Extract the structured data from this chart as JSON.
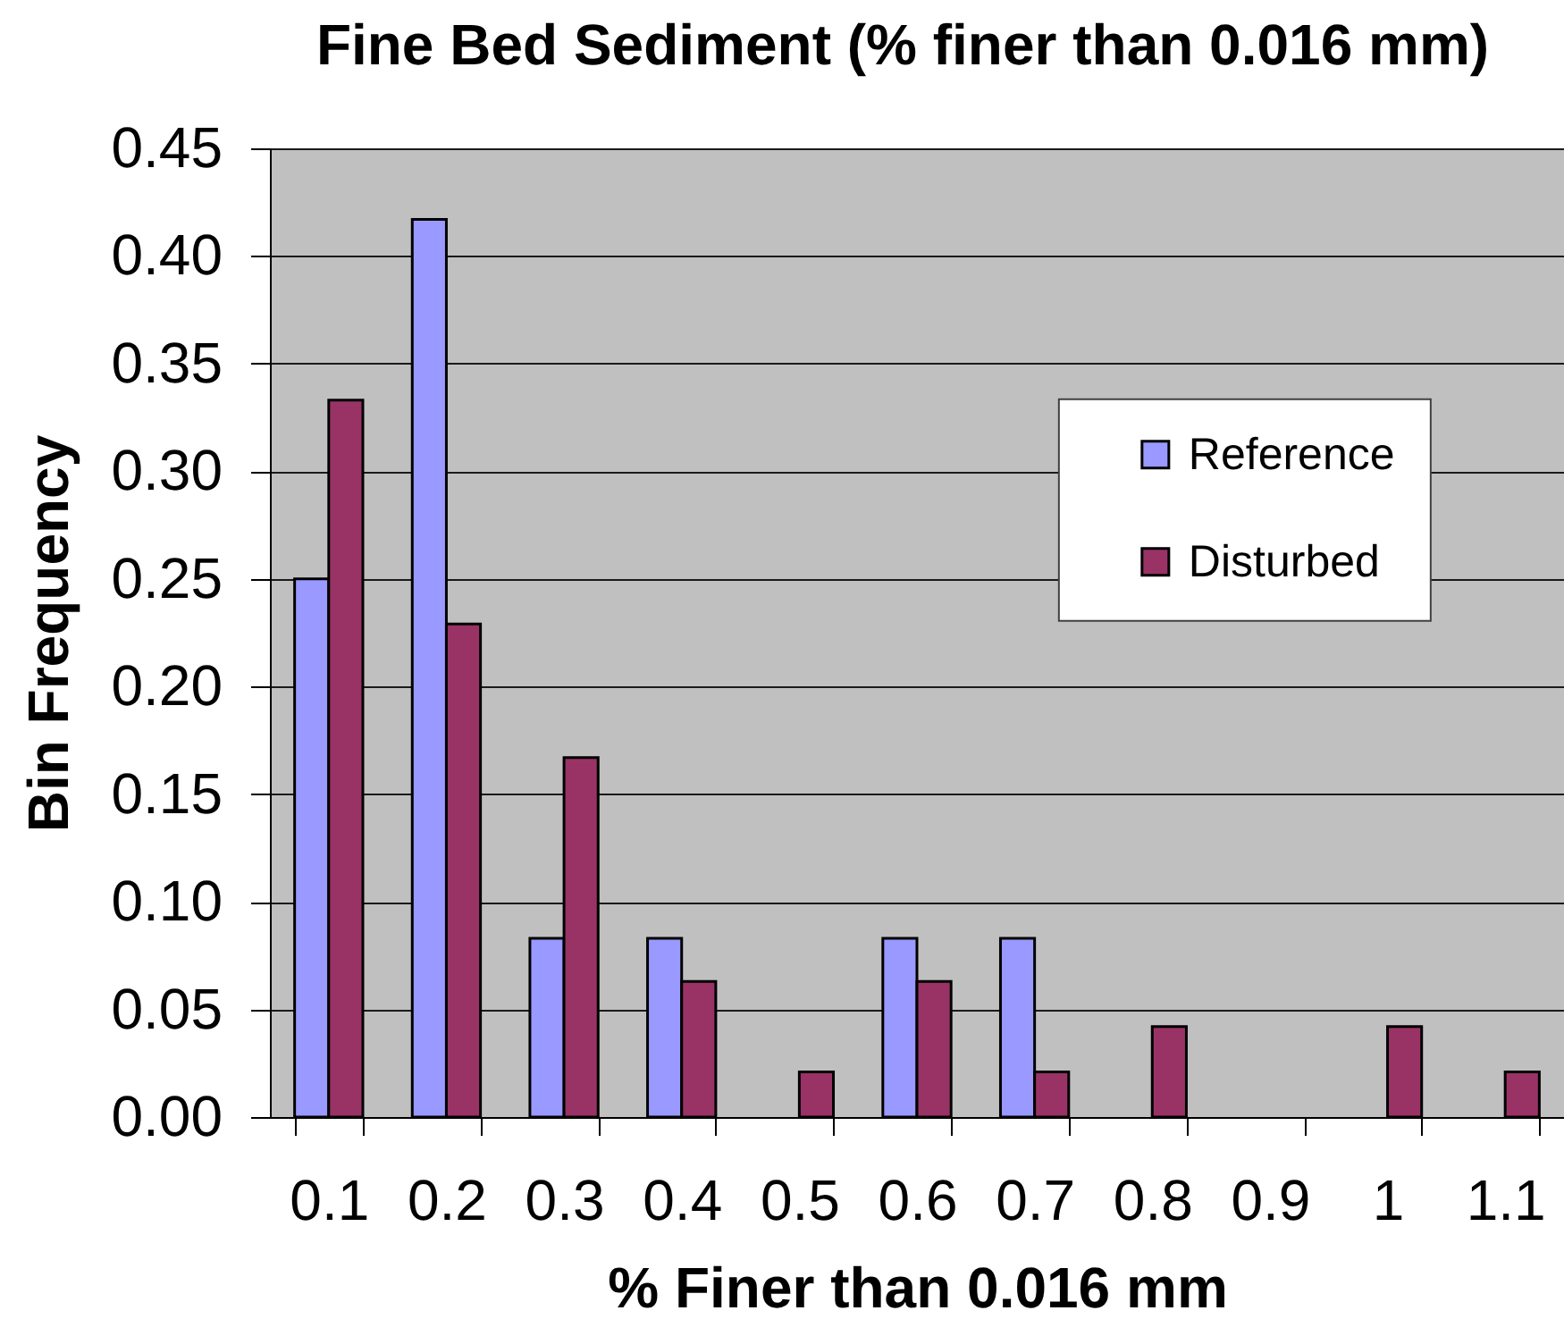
{
  "chart_data": {
    "type": "bar",
    "title": "Fine Bed Sediment (% finer than 0.016 mm)",
    "xlabel": "% Finer than 0.016 mm",
    "ylabel": "Bin Frequency",
    "categories": [
      "0.1",
      "0.2",
      "0.3",
      "0.4",
      "0.5",
      "0.6",
      "0.7",
      "0.8",
      "0.9",
      "1",
      "1.1"
    ],
    "series": [
      {
        "name": "Reference",
        "color": "#9999ff",
        "values": [
          0.25,
          0.417,
          0.083,
          0.083,
          0,
          0.083,
          0.083,
          0,
          0,
          0,
          0
        ]
      },
      {
        "name": "Disturbed",
        "color": "#993366",
        "values": [
          0.333,
          0.229,
          0.167,
          0.063,
          0.021,
          0.063,
          0.021,
          0.042,
          0,
          0.042,
          0.021
        ]
      }
    ],
    "ylim": [
      0,
      0.45
    ],
    "yticks": [
      {
        "value": 0,
        "label": "0.00"
      },
      {
        "value": 0.05,
        "label": "0.05"
      },
      {
        "value": 0.1,
        "label": "0.10"
      },
      {
        "value": 0.15,
        "label": "0.15"
      },
      {
        "value": 0.2,
        "label": "0.20"
      },
      {
        "value": 0.25,
        "label": "0.25"
      },
      {
        "value": 0.3,
        "label": "0.30"
      },
      {
        "value": 0.35,
        "label": "0.35"
      },
      {
        "value": 0.4,
        "label": "0.40"
      },
      {
        "value": 0.45,
        "label": "0.45"
      }
    ],
    "grid": "y",
    "legend": "top right"
  }
}
